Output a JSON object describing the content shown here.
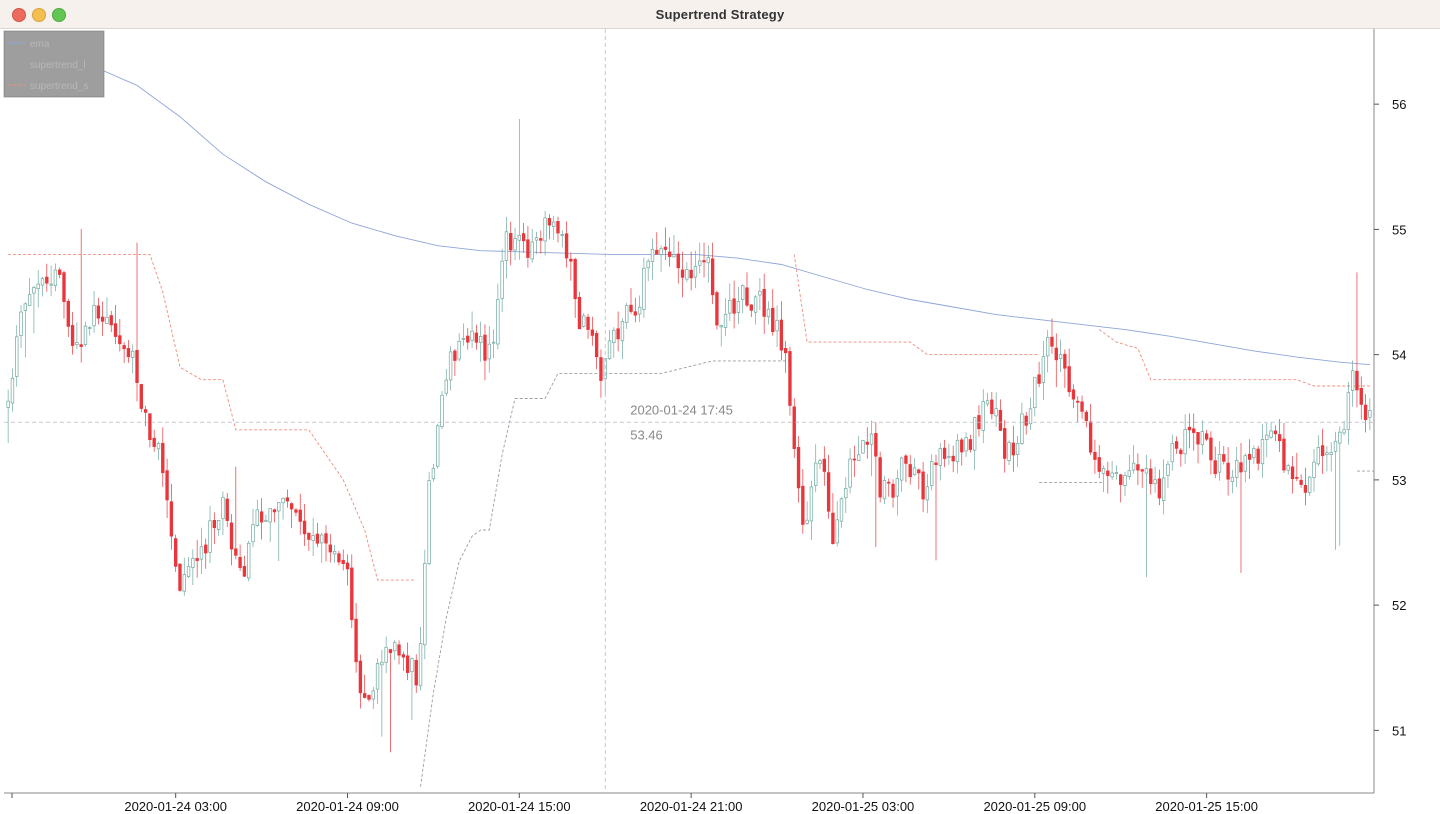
{
  "window": {
    "title": "Supertrend Strategy"
  },
  "legend": {
    "items": [
      {
        "label": "ema",
        "color": "#8fa4d8",
        "dash": "solid"
      },
      {
        "label": "supertrend_l",
        "color": "#9aa0a6",
        "dash": "dashed"
      },
      {
        "label": "supertrend_s",
        "color": "#f08d7e",
        "dash": "dashed"
      }
    ]
  },
  "crosshair": {
    "time": "2020-01-24 17:45",
    "price": "53.46",
    "price_value": 53.46,
    "time_index": 139
  },
  "colors": {
    "up": "#6fa8a0",
    "down": "#e8373c",
    "ema": "#8fa4d8",
    "supertrend_l": "#9aa0a6",
    "supertrend_s": "#f08d7e",
    "grid": "#e0e0e0"
  },
  "chart_data": {
    "type": "candlestick",
    "interval_minutes": 15,
    "x_ticks": [
      {
        "index": 39,
        "label": "2020-01-24 03:00"
      },
      {
        "index": 79,
        "label": "2020-01-24 09:00"
      },
      {
        "index": 119,
        "label": "2020-01-24 15:00"
      },
      {
        "index": 159,
        "label": "2020-01-24 21:00"
      },
      {
        "index": 199,
        "label": "2020-01-25 03:00"
      },
      {
        "index": 239,
        "label": "2020-01-25 09:00"
      },
      {
        "index": 279,
        "label": "2020-01-25 15:00"
      }
    ],
    "y_ticks": [
      51,
      52,
      53,
      54,
      55,
      56
    ],
    "ylim": [
      50.5,
      56.6
    ],
    "bar_count": 318,
    "anchors": [
      {
        "i": 0,
        "p": 53.7
      },
      {
        "i": 3,
        "p": 54.35
      },
      {
        "i": 8,
        "p": 54.55
      },
      {
        "i": 12,
        "p": 54.65
      },
      {
        "i": 15,
        "p": 54.1
      },
      {
        "i": 20,
        "p": 54.3
      },
      {
        "i": 24,
        "p": 54.2
      },
      {
        "i": 28,
        "p": 54.0
      },
      {
        "i": 34,
        "p": 53.35
      },
      {
        "i": 40,
        "p": 52.2
      },
      {
        "i": 44,
        "p": 52.4
      },
      {
        "i": 50,
        "p": 52.8
      },
      {
        "i": 54,
        "p": 52.25
      },
      {
        "i": 59,
        "p": 52.7
      },
      {
        "i": 64,
        "p": 52.8
      },
      {
        "i": 70,
        "p": 52.5
      },
      {
        "i": 78,
        "p": 52.4
      },
      {
        "i": 83,
        "p": 51.2
      },
      {
        "i": 87,
        "p": 51.6
      },
      {
        "i": 92,
        "p": 51.6
      },
      {
        "i": 95,
        "p": 51.45
      },
      {
        "i": 99,
        "p": 53.2
      },
      {
        "i": 102,
        "p": 53.9
      },
      {
        "i": 107,
        "p": 54.2
      },
      {
        "i": 112,
        "p": 54.0
      },
      {
        "i": 116,
        "p": 54.9
      },
      {
        "i": 120,
        "p": 54.85
      },
      {
        "i": 124,
        "p": 54.95
      },
      {
        "i": 127,
        "p": 55.1
      },
      {
        "i": 130,
        "p": 54.8
      },
      {
        "i": 134,
        "p": 54.2
      },
      {
        "i": 138,
        "p": 53.9
      },
      {
        "i": 141,
        "p": 54.2
      },
      {
        "i": 145,
        "p": 54.3
      },
      {
        "i": 150,
        "p": 54.8
      },
      {
        "i": 154,
        "p": 54.75
      },
      {
        "i": 158,
        "p": 54.6
      },
      {
        "i": 162,
        "p": 54.85
      },
      {
        "i": 166,
        "p": 54.25
      },
      {
        "i": 171,
        "p": 54.5
      },
      {
        "i": 175,
        "p": 54.4
      },
      {
        "i": 181,
        "p": 54.1
      },
      {
        "i": 183,
        "p": 53.2
      },
      {
        "i": 185,
        "p": 52.6
      },
      {
        "i": 189,
        "p": 53.2
      },
      {
        "i": 192,
        "p": 52.5
      },
      {
        "i": 196,
        "p": 53.1
      },
      {
        "i": 200,
        "p": 53.35
      },
      {
        "i": 204,
        "p": 52.9
      },
      {
        "i": 209,
        "p": 53.1
      },
      {
        "i": 213,
        "p": 52.95
      },
      {
        "i": 218,
        "p": 53.2
      },
      {
        "i": 223,
        "p": 53.3
      },
      {
        "i": 228,
        "p": 53.6
      },
      {
        "i": 233,
        "p": 53.2
      },
      {
        "i": 237,
        "p": 53.5
      },
      {
        "i": 240,
        "p": 53.85
      },
      {
        "i": 242,
        "p": 54.1
      },
      {
        "i": 245,
        "p": 53.9
      },
      {
        "i": 249,
        "p": 53.65
      },
      {
        "i": 252,
        "p": 53.3
      },
      {
        "i": 256,
        "p": 52.95
      },
      {
        "i": 260,
        "p": 53.05
      },
      {
        "i": 264,
        "p": 53.0
      },
      {
        "i": 268,
        "p": 52.9
      },
      {
        "i": 272,
        "p": 53.3
      },
      {
        "i": 276,
        "p": 53.4
      },
      {
        "i": 281,
        "p": 53.15
      },
      {
        "i": 285,
        "p": 53.05
      },
      {
        "i": 290,
        "p": 53.2
      },
      {
        "i": 294,
        "p": 53.35
      },
      {
        "i": 298,
        "p": 53.1
      },
      {
        "i": 302,
        "p": 53.0
      },
      {
        "i": 306,
        "p": 53.2
      },
      {
        "i": 310,
        "p": 53.4
      },
      {
        "i": 313,
        "p": 53.8
      },
      {
        "i": 317,
        "p": 53.55
      }
    ],
    "series": [
      {
        "name": "ema",
        "points": [
          {
            "i": 0,
            "p": 56.55
          },
          {
            "i": 10,
            "p": 56.45
          },
          {
            "i": 20,
            "p": 56.3
          },
          {
            "i": 30,
            "p": 56.15
          },
          {
            "i": 40,
            "p": 55.9
          },
          {
            "i": 50,
            "p": 55.6
          },
          {
            "i": 60,
            "p": 55.38
          },
          {
            "i": 70,
            "p": 55.2
          },
          {
            "i": 80,
            "p": 55.05
          },
          {
            "i": 90,
            "p": 54.95
          },
          {
            "i": 100,
            "p": 54.87
          },
          {
            "i": 110,
            "p": 54.83
          },
          {
            "i": 120,
            "p": 54.82
          },
          {
            "i": 130,
            "p": 54.81
          },
          {
            "i": 140,
            "p": 54.8
          },
          {
            "i": 150,
            "p": 54.8
          },
          {
            "i": 160,
            "p": 54.8
          },
          {
            "i": 170,
            "p": 54.77
          },
          {
            "i": 180,
            "p": 54.72
          },
          {
            "i": 190,
            "p": 54.62
          },
          {
            "i": 200,
            "p": 54.52
          },
          {
            "i": 210,
            "p": 54.44
          },
          {
            "i": 220,
            "p": 54.38
          },
          {
            "i": 230,
            "p": 54.32
          },
          {
            "i": 240,
            "p": 54.28
          },
          {
            "i": 250,
            "p": 54.24
          },
          {
            "i": 260,
            "p": 54.2
          },
          {
            "i": 270,
            "p": 54.15
          },
          {
            "i": 280,
            "p": 54.09
          },
          {
            "i": 290,
            "p": 54.03
          },
          {
            "i": 300,
            "p": 53.98
          },
          {
            "i": 310,
            "p": 53.94
          },
          {
            "i": 317,
            "p": 53.92
          }
        ]
      },
      {
        "name": "supertrend_l",
        "segments": [
          [
            {
              "i": 96,
              "p": 50.55
            },
            {
              "i": 99,
              "p": 51.3
            },
            {
              "i": 102,
              "p": 51.9
            },
            {
              "i": 105,
              "p": 52.35
            },
            {
              "i": 108,
              "p": 52.55
            },
            {
              "i": 110,
              "p": 52.6
            },
            {
              "i": 112,
              "p": 52.6
            },
            {
              "i": 115,
              "p": 53.2
            },
            {
              "i": 118,
              "p": 53.65
            },
            {
              "i": 121,
              "p": 53.65
            },
            {
              "i": 125,
              "p": 53.65
            },
            {
              "i": 128,
              "p": 53.85
            },
            {
              "i": 134,
              "p": 53.85
            },
            {
              "i": 140,
              "p": 53.85
            },
            {
              "i": 152,
              "p": 53.85
            },
            {
              "i": 158,
              "p": 53.9
            },
            {
              "i": 164,
              "p": 53.95
            },
            {
              "i": 182,
              "p": 53.95
            }
          ],
          [
            {
              "i": 240,
              "p": 52.98
            },
            {
              "i": 255,
              "p": 52.98
            }
          ],
          [
            {
              "i": 314,
              "p": 53.07
            },
            {
              "i": 318,
              "p": 53.07
            }
          ]
        ]
      },
      {
        "name": "supertrend_s",
        "segments": [
          [
            {
              "i": 0,
              "p": 54.8
            },
            {
              "i": 33,
              "p": 54.8
            },
            {
              "i": 36,
              "p": 54.5
            },
            {
              "i": 40,
              "p": 53.9
            },
            {
              "i": 45,
              "p": 53.8
            },
            {
              "i": 50,
              "p": 53.8
            },
            {
              "i": 53,
              "p": 53.4
            },
            {
              "i": 60,
              "p": 53.4
            },
            {
              "i": 70,
              "p": 53.4
            },
            {
              "i": 74,
              "p": 53.2
            },
            {
              "i": 78,
              "p": 53.0
            },
            {
              "i": 83,
              "p": 52.6
            },
            {
              "i": 86,
              "p": 52.2
            },
            {
              "i": 95,
              "p": 52.2
            }
          ],
          [
            {
              "i": 183,
              "p": 54.8
            },
            {
              "i": 186,
              "p": 54.1
            },
            {
              "i": 210,
              "p": 54.1
            },
            {
              "i": 214,
              "p": 54.0
            },
            {
              "i": 240,
              "p": 54.0
            }
          ],
          [
            {
              "i": 254,
              "p": 54.2
            },
            {
              "i": 258,
              "p": 54.1
            },
            {
              "i": 263,
              "p": 54.05
            },
            {
              "i": 266,
              "p": 53.8
            },
            {
              "i": 300,
              "p": 53.8
            },
            {
              "i": 304,
              "p": 53.75
            },
            {
              "i": 317,
              "p": 53.75
            }
          ]
        ]
      }
    ]
  }
}
